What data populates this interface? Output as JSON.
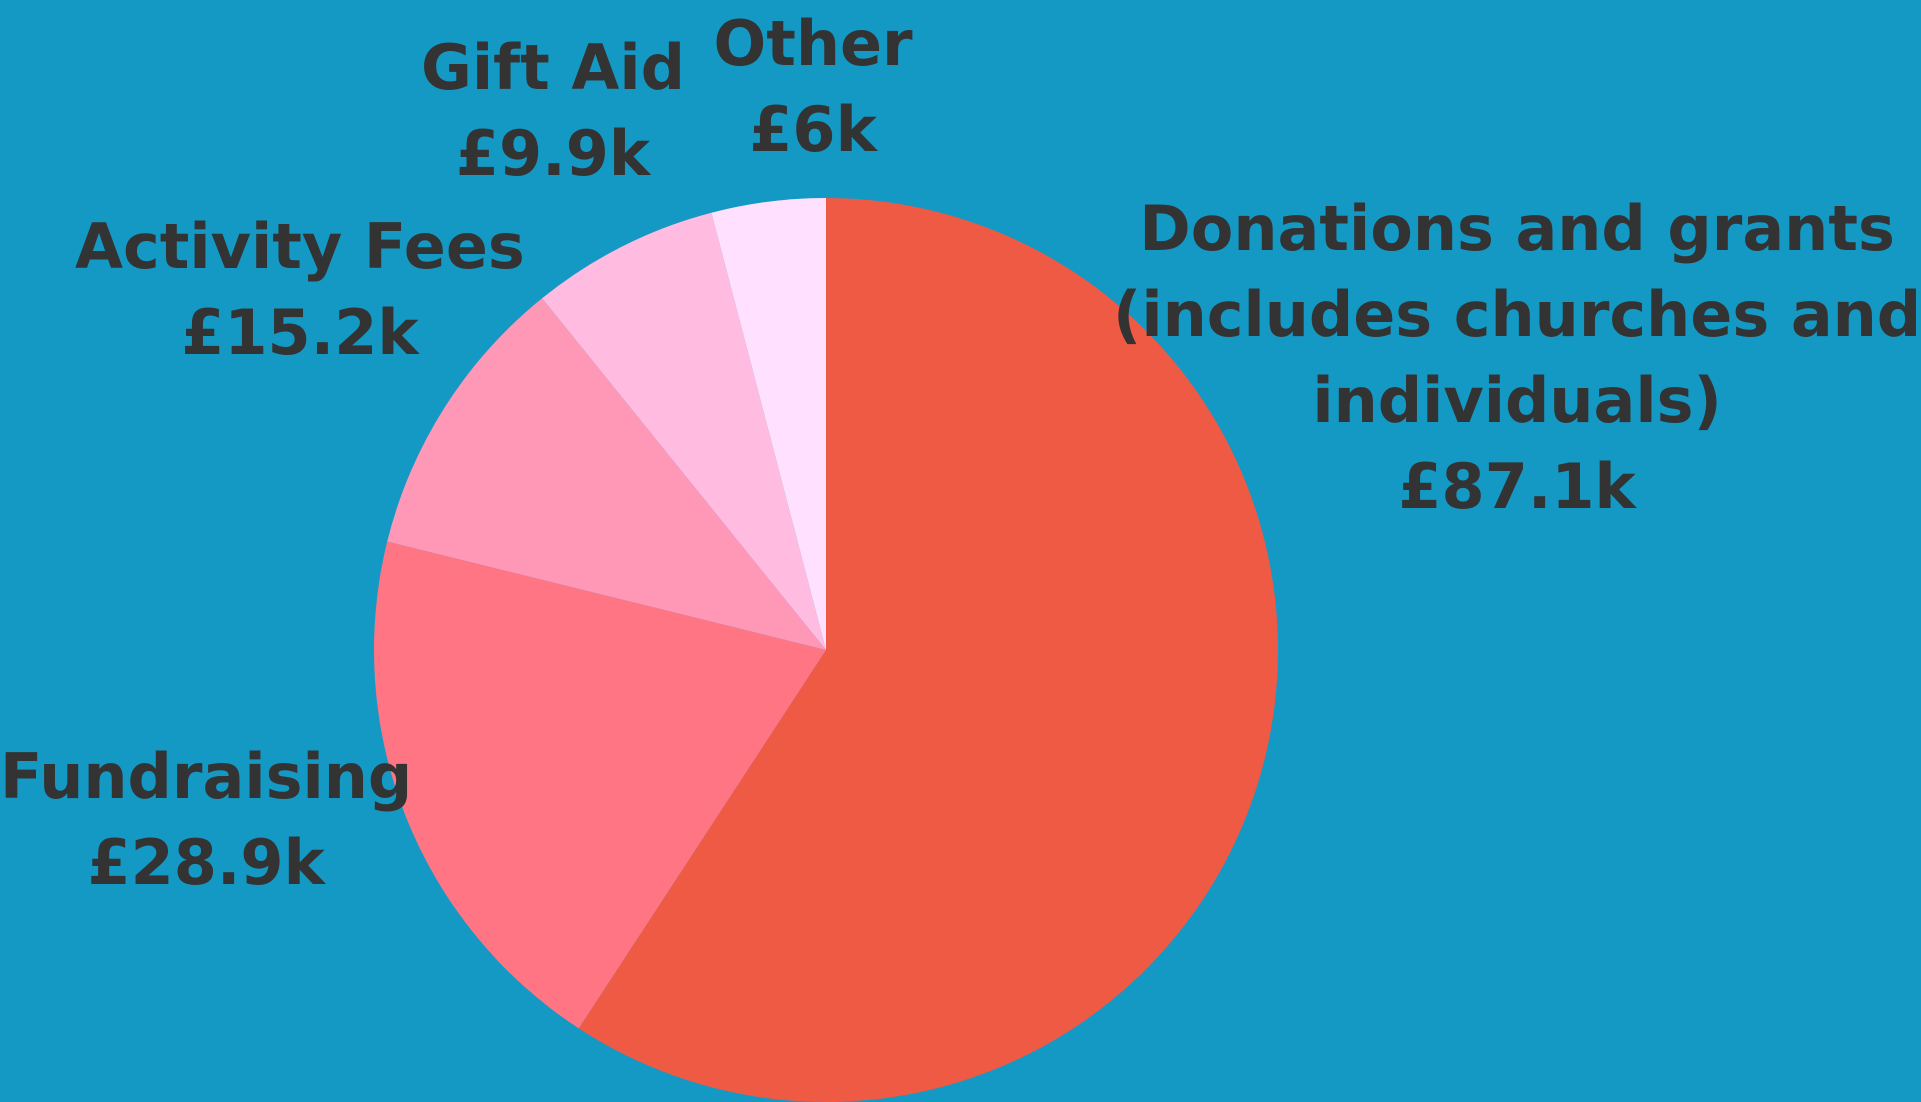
{
  "background_color": "#1499C4",
  "text_color": "#333333",
  "chart_data": {
    "type": "pie",
    "start_angle_deg": 0,
    "direction": "clockwise",
    "slices": [
      {
        "label_lines": [
          "Donations and grants",
          "(includes churches and",
          "individuals)"
        ],
        "value_label": "£87.1k",
        "value": 87.1,
        "color": "#EF5A45"
      },
      {
        "label_lines": [
          "Fundraising"
        ],
        "value_label": "£28.9k",
        "value": 28.9,
        "color": "#FF7584"
      },
      {
        "label_lines": [
          "Activity Fees"
        ],
        "value_label": "£15.2k",
        "value": 15.2,
        "color": "#FF97B6"
      },
      {
        "label_lines": [
          "Gift Aid"
        ],
        "value_label": "£9.9k",
        "value": 9.9,
        "color": "#FFBBE0"
      },
      {
        "label_lines": [
          "Other"
        ],
        "value_label": "£6k",
        "value": 6,
        "color": "#FFE0FE"
      }
    ]
  }
}
